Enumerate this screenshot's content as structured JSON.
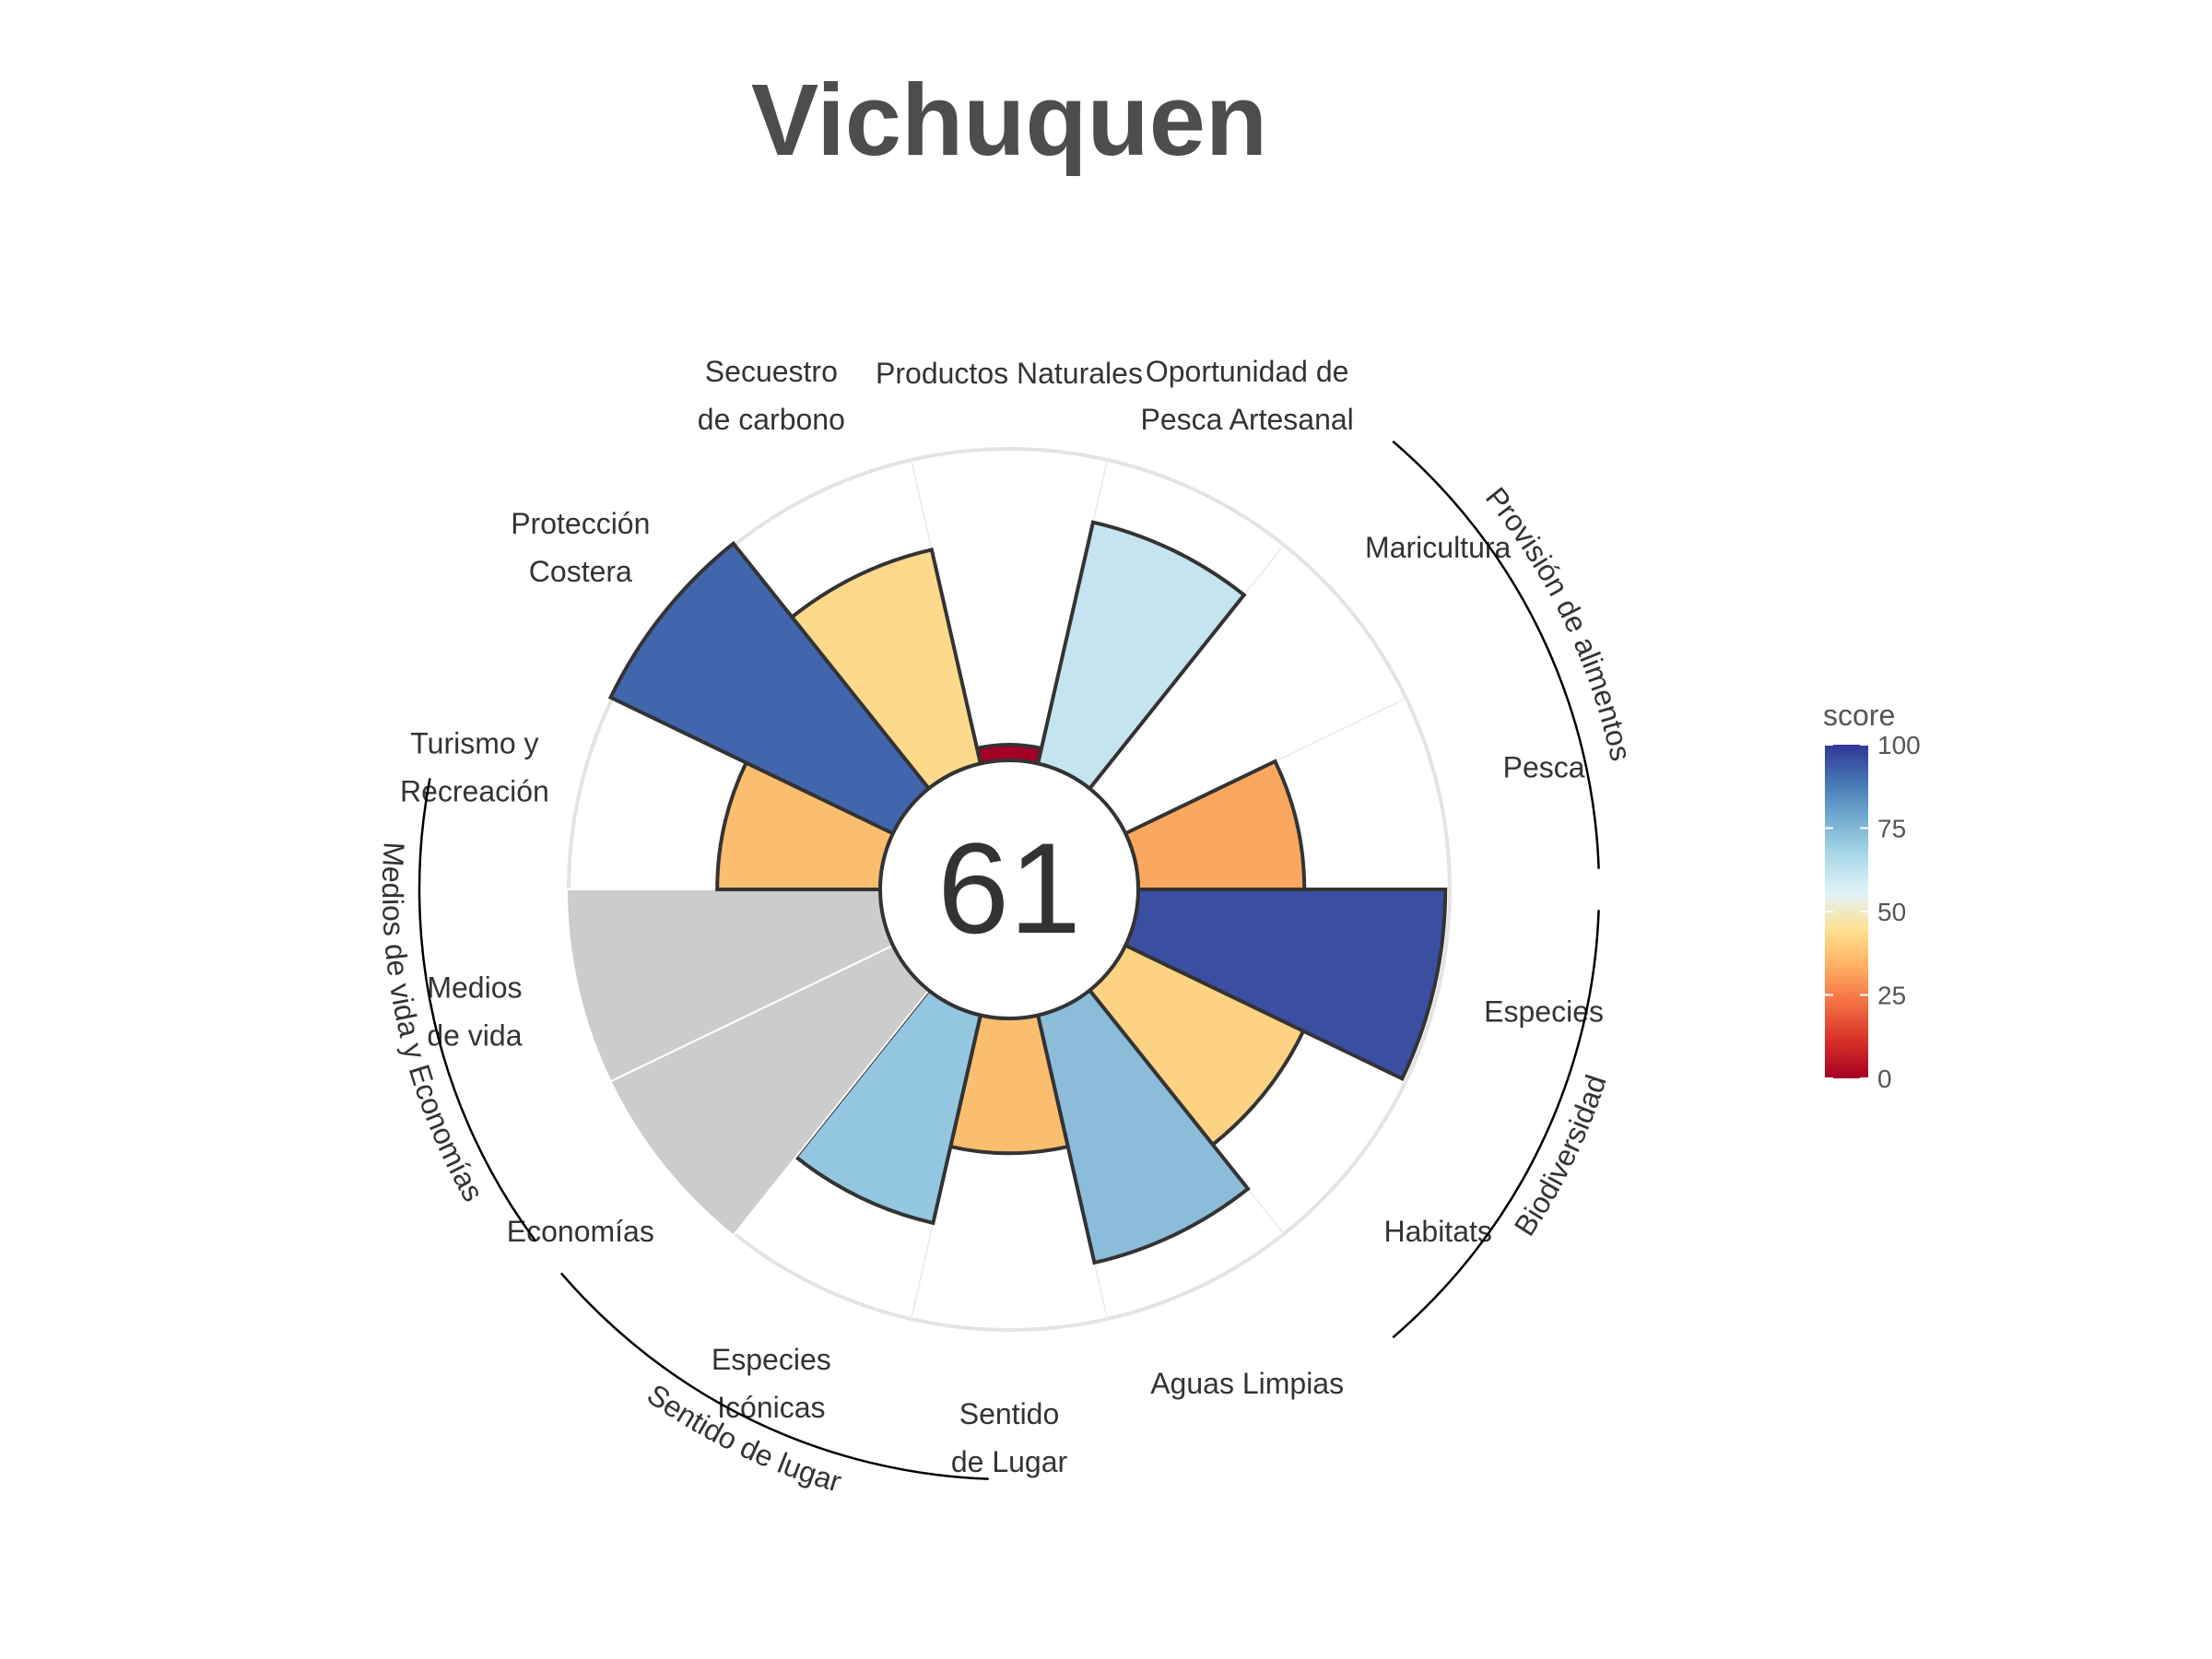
{
  "chart_data": {
    "type": "polar-bar",
    "title": "Vichuquen",
    "center_score": "61",
    "categories": [
      {
        "label": [
          "Productos Naturales"
        ],
        "score": 5,
        "color": "#a50026",
        "na": false,
        "outlined": true
      },
      {
        "label": [
          "Oportunidad de",
          "Pesca Artesanal"
        ],
        "score": 79,
        "color": "#c4e4ef",
        "na": false,
        "outlined": true
      },
      {
        "label": [
          "Maricultura"
        ],
        "score": null,
        "color": "#ffffff",
        "na": true,
        "outlined": false
      },
      {
        "label": [
          "Pesca"
        ],
        "score": 53,
        "color": "#fca75e",
        "na": false,
        "outlined": true
      },
      {
        "label": [
          "Especies"
        ],
        "score": 98,
        "color": "#3a4fa2",
        "na": false,
        "outlined": true
      },
      {
        "label": [
          "Habitats"
        ],
        "score": 63,
        "color": "#fdd282",
        "na": false,
        "outlined": true
      },
      {
        "label": [
          "Aguas Limpias"
        ],
        "score": 81,
        "color": "#8bbcda",
        "na": false,
        "outlined": true
      },
      {
        "label": [
          "Sentido",
          "de Lugar"
        ],
        "score": 43,
        "color": "#fbbd6e",
        "na": false,
        "outlined": true
      },
      {
        "label": [
          "Especies",
          "Icónicas"
        ],
        "score": 68,
        "color": "#93c6e0",
        "na": false,
        "outlined": true
      },
      {
        "label": [
          "Economías"
        ],
        "score": 100,
        "color": "#cccccc",
        "na": false,
        "outlined": false
      },
      {
        "label": [
          "Medios",
          "de vida"
        ],
        "score": 100,
        "color": "#cccccc",
        "na": false,
        "outlined": false
      },
      {
        "label": [
          "Turismo y",
          "Recreación"
        ],
        "score": 52,
        "color": "#fbbd6e",
        "na": false,
        "outlined": true
      },
      {
        "label": [
          "Protección",
          "Costera"
        ],
        "score": 100,
        "color": "#4166ae",
        "na": false,
        "outlined": true
      },
      {
        "label": [
          "Secuestro",
          "de carbono"
        ],
        "score": 70,
        "color": "#fdd98b",
        "na": false,
        "outlined": true
      }
    ],
    "groups": [
      {
        "label": "Provisión de alimentos",
        "start": 2,
        "end": 4
      },
      {
        "label": "Biodiversidad",
        "start": 4,
        "end": 6
      },
      {
        "label": "Sentido de lugar",
        "start": 7.5,
        "end": 9.5
      },
      {
        "label": "Medios de vida y Economías",
        "start": 9.5,
        "end": 11.5
      }
    ],
    "legend": {
      "title": "score",
      "ticks": [
        "100",
        "75",
        "50",
        "25",
        "0"
      ],
      "range": [
        0,
        100
      ],
      "colors": [
        "#a50026",
        "#d73027",
        "#f46d43",
        "#fdae61",
        "#fee090",
        "#e0f3f8",
        "#abd9e9",
        "#74add1",
        "#4575b4",
        "#313695"
      ]
    },
    "ylim": [
      0,
      100
    ]
  }
}
